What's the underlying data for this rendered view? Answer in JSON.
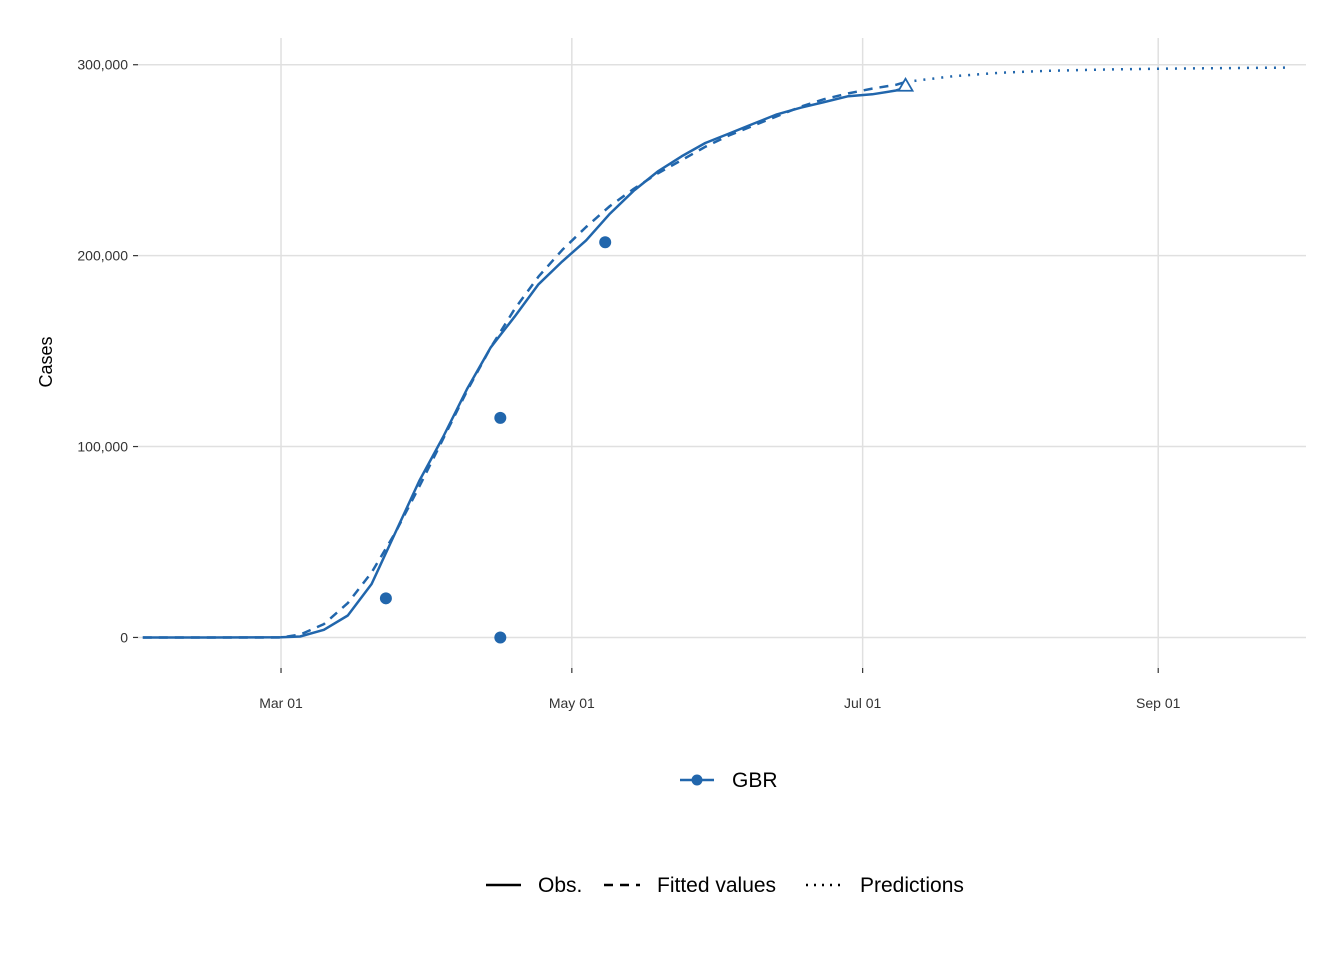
{
  "chart_data": {
    "type": "line",
    "title": "",
    "xlabel": "",
    "ylabel": "Cases",
    "x_ticks": [
      "Mar 01",
      "May 01",
      "Jul 01",
      "Sep 01"
    ],
    "x_tick_dates": [
      "2020-03-01",
      "2020-05-01",
      "2020-07-01",
      "2020-09-01"
    ],
    "xlim": [
      "2020-01-31",
      "2020-10-02"
    ],
    "y_ticks": [
      "0",
      "100,000",
      "200,000",
      "300,000"
    ],
    "y_tick_values": [
      0,
      100000,
      200000,
      300000
    ],
    "ylim": [
      -16000,
      314000
    ],
    "grid": true,
    "color": "#2166ac",
    "series": [
      {
        "name": "GBR",
        "style": "solid",
        "legend": "Obs.",
        "x": [
          "2020-02-01",
          "2020-02-15",
          "2020-03-01",
          "2020-03-05",
          "2020-03-10",
          "2020-03-15",
          "2020-03-20",
          "2020-03-25",
          "2020-03-30",
          "2020-04-04",
          "2020-04-09",
          "2020-04-14",
          "2020-04-19",
          "2020-04-24",
          "2020-04-29",
          "2020-05-04",
          "2020-05-09",
          "2020-05-14",
          "2020-05-19",
          "2020-05-24",
          "2020-05-29",
          "2020-06-03",
          "2020-06-08",
          "2020-06-13",
          "2020-06-18",
          "2020-06-23",
          "2020-06-28",
          "2020-07-03",
          "2020-07-08",
          "2020-07-10"
        ],
        "y": [
          0,
          0,
          100,
          500,
          4000,
          11500,
          28000,
          55000,
          82000,
          105000,
          130000,
          152000,
          168000,
          185000,
          197000,
          208000,
          222000,
          234000,
          244000,
          252000,
          259000,
          264000,
          269000,
          274000,
          277500,
          280500,
          283500,
          284500,
          286500,
          288000
        ]
      },
      {
        "name": "GBR",
        "style": "dashed",
        "legend": "Fitted values",
        "x": [
          "2020-02-01",
          "2020-02-20",
          "2020-03-01",
          "2020-03-05",
          "2020-03-10",
          "2020-03-15",
          "2020-03-20",
          "2020-03-25",
          "2020-03-30",
          "2020-04-04",
          "2020-04-09",
          "2020-04-14",
          "2020-04-19",
          "2020-04-24",
          "2020-04-29",
          "2020-05-04",
          "2020-05-09",
          "2020-05-14",
          "2020-05-19",
          "2020-05-24",
          "2020-05-29",
          "2020-06-03",
          "2020-06-08",
          "2020-06-13",
          "2020-06-18",
          "2020-06-23",
          "2020-06-28",
          "2020-07-03",
          "2020-07-08",
          "2020-07-10"
        ],
        "y": [
          0,
          0,
          0,
          1500,
          7000,
          18000,
          34000,
          55000,
          79000,
          104000,
          129000,
          152000,
          172000,
          189000,
          203000,
          215000,
          226000,
          235000,
          243000,
          250000,
          257000,
          263000,
          268000,
          273000,
          278000,
          282000,
          285000,
          287500,
          289500,
          291000
        ]
      },
      {
        "name": "GBR",
        "style": "dotted",
        "legend": "Predictions",
        "x": [
          "2020-07-10",
          "2020-07-20",
          "2020-07-30",
          "2020-08-09",
          "2020-08-19",
          "2020-08-29",
          "2020-09-08",
          "2020-09-18",
          "2020-09-28"
        ],
        "y": [
          291000,
          294000,
          295800,
          296800,
          297400,
          297800,
          298100,
          298300,
          298500
        ]
      }
    ],
    "points": {
      "name": "GBR",
      "marker": "circle",
      "x": [
        "2020-03-23",
        "2020-04-16",
        "2020-04-16",
        "2020-05-08"
      ],
      "y": [
        20500,
        0,
        115000,
        207000
      ]
    },
    "end_marker": {
      "marker": "triangle-open",
      "x": "2020-07-10",
      "y": 289000
    },
    "legend_country": {
      "placement": "bottom",
      "entries": [
        "GBR"
      ]
    },
    "legend_linetype": {
      "placement": "bottom",
      "entries": [
        "Obs.",
        "Fitted values",
        "Predictions"
      ]
    }
  }
}
